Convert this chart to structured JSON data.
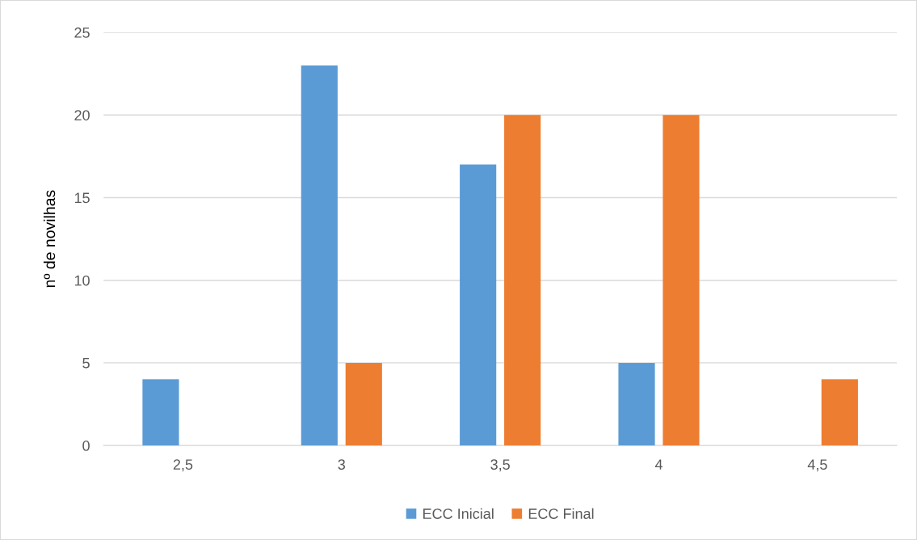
{
  "chart_data": {
    "type": "bar",
    "ylabel": "nº de novilhas",
    "categories": [
      "2,5",
      "3",
      "3,5",
      "4",
      "4,5"
    ],
    "series": [
      {
        "name": "ECC Inicial",
        "color": "#5b9bd5",
        "values": [
          4,
          23,
          17,
          5,
          null
        ]
      },
      {
        "name": "ECC Final",
        "color": "#ed7d31",
        "values": [
          null,
          5,
          20,
          20,
          4
        ]
      }
    ],
    "ylim": [
      0,
      25
    ],
    "yticks": [
      0,
      5,
      10,
      15,
      20,
      25
    ],
    "grid": "y",
    "legend": "bottom"
  }
}
